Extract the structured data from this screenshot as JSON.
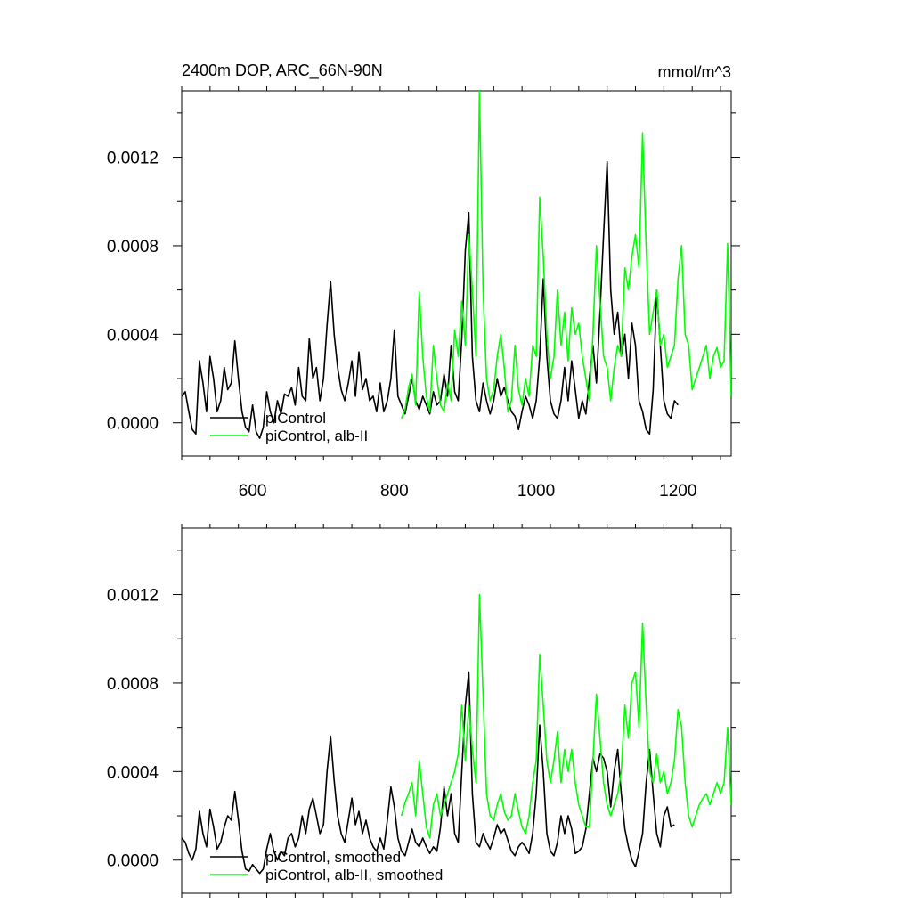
{
  "chart_data": [
    {
      "type": "line",
      "title": "2400m DOP, ARC_66N-90N",
      "units": "mmol/m^3",
      "xlim": [
        500,
        1275
      ],
      "ylim": [
        -0.00015,
        0.0015
      ],
      "xticks": [
        600,
        800,
        1000,
        1200
      ],
      "xtick_labels": [
        "600",
        "800",
        "1000",
        "1200"
      ],
      "yticks": [
        0.0,
        0.0004,
        0.0008,
        0.0012
      ],
      "ytick_labels": [
        "0.0000",
        "0.0004",
        "0.0008",
        "0.0012"
      ],
      "grid": false,
      "legend_position": "bottom-left",
      "series": [
        {
          "name": "piControl",
          "color": "#000000",
          "x": [
            500,
            505,
            510,
            515,
            520,
            525,
            530,
            535,
            540,
            545,
            550,
            555,
            560,
            565,
            570,
            575,
            580,
            585,
            590,
            595,
            600,
            605,
            610,
            615,
            620,
            625,
            630,
            635,
            640,
            645,
            650,
            655,
            660,
            665,
            670,
            675,
            680,
            685,
            690,
            695,
            700,
            705,
            710,
            715,
            720,
            725,
            730,
            735,
            740,
            745,
            750,
            755,
            760,
            765,
            770,
            775,
            780,
            785,
            790,
            795,
            800,
            805,
            810,
            815,
            820,
            825,
            830,
            835,
            840,
            845,
            850,
            855,
            860,
            865,
            870,
            875,
            880,
            885,
            890,
            895,
            900,
            905,
            910,
            915,
            920,
            925,
            930,
            935,
            940,
            945,
            950,
            955,
            960,
            965,
            970,
            975,
            980,
            985,
            990,
            995,
            1000,
            1005,
            1010,
            1015,
            1020,
            1025,
            1030,
            1035,
            1040,
            1045,
            1050,
            1055,
            1060,
            1065,
            1070,
            1075,
            1080,
            1085,
            1090,
            1095,
            1100,
            1105,
            1110,
            1115,
            1120,
            1125,
            1130,
            1135,
            1140,
            1145,
            1150,
            1155,
            1160,
            1165,
            1170,
            1175,
            1180,
            1185,
            1190,
            1195,
            1200
          ],
          "y": [
            0.00012,
            0.00014,
            5e-05,
            -3e-05,
            -5e-05,
            0.00028,
            0.00018,
            5e-05,
            0.0003,
            0.0002,
            5e-05,
            0.0001,
            0.00025,
            0.00015,
            0.00018,
            0.00037,
            0.0002,
            5e-05,
            -2e-05,
            -4e-05,
            8e-05,
            -4e-05,
            -7e-05,
            -2e-05,
            0.00014,
            5e-05,
            0.0,
            0.0001,
            4e-05,
            0.00013,
            0.00012,
            0.00016,
            8e-05,
            0.00025,
            0.00012,
            0.0001,
            0.00038,
            0.0002,
            0.00025,
            0.0001,
            0.0002,
            0.00044,
            0.00064,
            0.0004,
            0.00025,
            0.00015,
            0.0001,
            0.00018,
            0.00028,
            0.00012,
            0.00032,
            0.00015,
            0.0002,
            0.0001,
            0.00012,
            5e-05,
            0.00018,
            5e-05,
            0.0001,
            0.0002,
            0.00042,
            0.00012,
            8e-05,
            4e-05,
            0.00012,
            0.0002,
            0.0001,
            6e-05,
            0.00012,
            8e-05,
            4e-05,
            0.00014,
            8e-05,
            0.0001,
            0.00022,
            0.00012,
            0.00035,
            0.00014,
            0.0001,
            0.00038,
            0.00078,
            0.00095,
            0.0003,
            0.0001,
            5e-05,
            0.00018,
            0.0001,
            4e-05,
            0.0001,
            0.0002,
            0.00012,
            0.00016,
            0.0001,
            5e-05,
            3e-05,
            -3e-05,
            5e-05,
            0.00012,
            8e-05,
            2e-05,
            0.0001,
            0.0003,
            0.00065,
            0.0003,
            0.0001,
            4e-05,
            2e-05,
            0.0001,
            0.00025,
            0.0001,
            0.00028,
            0.00015,
            2e-05,
            0.0001,
            4e-05,
            0.0002,
            0.00035,
            0.00018,
            0.0005,
            0.00085,
            0.00118,
            0.0006,
            0.0004,
            0.0005,
            0.0003,
            0.0004,
            0.0002,
            0.00045,
            0.00035,
            0.0001,
            5e-05,
            -3e-05,
            -5e-05,
            0.00015,
            0.0006,
            0.00035,
            0.0001,
            4e-05,
            2e-05,
            0.0001,
            8e-05
          ]
        },
        {
          "name": "piControl, alb-II",
          "color": "#00ff00",
          "x": [
            810,
            815,
            820,
            825,
            830,
            835,
            840,
            845,
            850,
            855,
            860,
            865,
            870,
            875,
            880,
            885,
            890,
            895,
            900,
            905,
            910,
            915,
            920,
            925,
            930,
            935,
            940,
            945,
            950,
            955,
            960,
            965,
            970,
            975,
            980,
            985,
            990,
            995,
            1000,
            1005,
            1010,
            1015,
            1020,
            1025,
            1030,
            1035,
            1040,
            1045,
            1050,
            1055,
            1060,
            1065,
            1070,
            1075,
            1080,
            1085,
            1090,
            1095,
            1100,
            1105,
            1110,
            1115,
            1120,
            1125,
            1130,
            1135,
            1140,
            1145,
            1150,
            1155,
            1160,
            1165,
            1170,
            1175,
            1180,
            1185,
            1190,
            1195,
            1200,
            1205,
            1210,
            1215,
            1220,
            1225,
            1230,
            1235,
            1240,
            1245,
            1250,
            1255,
            1260,
            1265,
            1270,
            1275
          ],
          "y": [
            2e-05,
            6e-05,
            0.00016,
            0.00022,
            8e-05,
            0.00059,
            0.0003,
            0.00012,
            5e-05,
            0.00035,
            0.0002,
            8e-05,
            5e-05,
            0.00018,
            0.0001,
            0.00042,
            0.0003,
            0.00055,
            0.00035,
            0.00085,
            0.0006,
            0.0003,
            0.0015,
            0.0006,
            0.0002,
            0.0001,
            0.00015,
            0.0003,
            0.0004,
            0.00025,
            5e-05,
            0.0001,
            0.00035,
            0.00015,
            8e-05,
            0.0002,
            0.00012,
            0.00035,
            0.0003,
            0.00102,
            0.00075,
            0.0004,
            0.0002,
            0.0003,
            0.0006,
            0.00035,
            0.0005,
            0.00028,
            0.00052,
            0.0004,
            0.00045,
            0.0003,
            0.0002,
            0.0001,
            0.0004,
            0.0008,
            0.00055,
            0.0003,
            0.00025,
            0.0001,
            0.00025,
            0.00035,
            0.0003,
            0.0007,
            0.0006,
            0.00075,
            0.00085,
            0.0007,
            0.00131,
            0.0008,
            0.0004,
            0.0005,
            0.0006,
            0.00035,
            0.0004,
            0.00025,
            0.0003,
            0.00035,
            0.00065,
            0.0008,
            0.0004,
            0.00035,
            0.00015,
            0.0002,
            0.00025,
            0.0003,
            0.00035,
            0.0002,
            0.0003,
            0.00034,
            0.00025,
            0.00028,
            0.00081,
            0.00012
          ]
        }
      ]
    },
    {
      "type": "line",
      "xlim": [
        500,
        1275
      ],
      "ylim": [
        -0.00015,
        0.0015
      ],
      "xticks": [
        600,
        800,
        1000,
        1200
      ],
      "yticks": [
        0.0,
        0.0004,
        0.0008,
        0.0012
      ],
      "ytick_labels": [
        "0.0000",
        "0.0004",
        "0.0008",
        "0.0012"
      ],
      "grid": false,
      "legend_position": "bottom-left",
      "series": [
        {
          "name": "piControl, smoothed",
          "color": "#000000",
          "x": [
            500,
            505,
            510,
            515,
            520,
            525,
            530,
            535,
            540,
            545,
            550,
            555,
            560,
            565,
            570,
            575,
            580,
            585,
            590,
            595,
            600,
            605,
            610,
            615,
            620,
            625,
            630,
            635,
            640,
            645,
            650,
            655,
            660,
            665,
            670,
            675,
            680,
            685,
            690,
            695,
            700,
            705,
            710,
            715,
            720,
            725,
            730,
            735,
            740,
            745,
            750,
            755,
            760,
            765,
            770,
            775,
            780,
            785,
            790,
            795,
            800,
            805,
            810,
            815,
            820,
            825,
            830,
            835,
            840,
            845,
            850,
            855,
            860,
            865,
            870,
            875,
            880,
            885,
            890,
            895,
            900,
            905,
            910,
            915,
            920,
            925,
            930,
            935,
            940,
            945,
            950,
            955,
            960,
            965,
            970,
            975,
            980,
            985,
            990,
            995,
            1000,
            1005,
            1010,
            1015,
            1020,
            1025,
            1030,
            1035,
            1040,
            1045,
            1050,
            1055,
            1060,
            1065,
            1070,
            1075,
            1080,
            1085,
            1090,
            1095,
            1100,
            1105,
            1110,
            1115,
            1120,
            1125,
            1130,
            1135,
            1140,
            1145,
            1150,
            1155,
            1160,
            1165,
            1170,
            1175,
            1180,
            1185,
            1190,
            1195
          ],
          "y": [
            0.0001,
            8e-05,
            3e-05,
            0.0,
            5e-05,
            0.00022,
            0.00012,
            6e-05,
            0.00023,
            0.00015,
            5e-05,
            8e-05,
            0.00015,
            0.0002,
            0.00018,
            0.00031,
            0.00018,
            4e-05,
            -4e-05,
            -5e-05,
            -2e-05,
            -4e-05,
            -6e-05,
            -4e-05,
            5e-05,
            0.00012,
            4e-05,
            0.0,
            4e-05,
            2e-05,
            0.0001,
            0.00012,
            6e-05,
            0.0001,
            0.0002,
            0.00012,
            0.00023,
            0.00028,
            0.0002,
            0.00012,
            0.00016,
            0.0004,
            0.00056,
            0.00036,
            0.0002,
            0.00012,
            8e-05,
            0.00018,
            0.00028,
            0.00016,
            0.00022,
            0.00012,
            0.00018,
            0.0001,
            6e-05,
            4e-05,
            0.0001,
            5e-05,
            0.00018,
            0.00033,
            0.00024,
            0.0001,
            4e-05,
            2e-05,
            8e-05,
            0.00014,
            8e-05,
            6e-05,
            0.0001,
            6e-05,
            3e-05,
            6e-05,
            4e-05,
            0.00015,
            0.00033,
            0.0002,
            0.0003,
            0.00012,
            8e-05,
            0.0004,
            0.0007,
            0.00085,
            0.0003,
            8e-05,
            6e-05,
            0.00012,
            8e-05,
            5e-05,
            0.0001,
            0.00016,
            0.00012,
            0.00014,
            9e-05,
            4e-05,
            2e-05,
            6e-05,
            8e-05,
            6e-05,
            3e-05,
            0.00012,
            0.0003,
            0.00061,
            0.0004,
            0.00012,
            4e-05,
            2e-05,
            8e-05,
            0.0002,
            0.00012,
            0.0002,
            0.00014,
            3e-05,
            4e-05,
            6e-05,
            0.00014,
            0.0003,
            0.00046,
            0.0004,
            0.00048,
            0.00046,
            0.0004,
            0.00024,
            0.0004,
            0.0005,
            0.0003,
            0.00014,
            6e-05,
            0.0,
            -3e-05,
            4e-05,
            0.00012,
            0.00035,
            0.0005,
            0.0003,
            0.00012,
            6e-05,
            0.0002,
            0.00024,
            0.00015,
            0.00016
          ]
        },
        {
          "name": "piControl, alb-II, smoothed",
          "color": "#00ff00",
          "x": [
            810,
            815,
            820,
            825,
            830,
            835,
            840,
            845,
            850,
            855,
            860,
            865,
            870,
            875,
            880,
            885,
            890,
            895,
            900,
            905,
            910,
            915,
            920,
            925,
            930,
            935,
            940,
            945,
            950,
            955,
            960,
            965,
            970,
            975,
            980,
            985,
            990,
            995,
            1000,
            1005,
            1010,
            1015,
            1020,
            1025,
            1030,
            1035,
            1040,
            1045,
            1050,
            1055,
            1060,
            1065,
            1070,
            1075,
            1080,
            1085,
            1090,
            1095,
            1100,
            1105,
            1110,
            1115,
            1120,
            1125,
            1130,
            1135,
            1140,
            1145,
            1150,
            1155,
            1160,
            1165,
            1170,
            1175,
            1180,
            1185,
            1190,
            1195,
            1200,
            1205,
            1210,
            1215,
            1220,
            1225,
            1230,
            1235,
            1240,
            1245,
            1250,
            1255,
            1260,
            1265,
            1270,
            1275
          ],
          "y": [
            0.0002,
            0.00026,
            0.0003,
            0.00035,
            0.0002,
            0.00045,
            0.0003,
            0.00015,
            0.0001,
            0.00025,
            0.0003,
            0.0002,
            0.00025,
            0.0003,
            0.00035,
            0.0004,
            0.00048,
            0.0007,
            0.00045,
            0.0007,
            0.0005,
            0.00035,
            0.0012,
            0.00075,
            0.0003,
            0.0002,
            0.00018,
            0.00025,
            0.0003,
            0.00022,
            0.00018,
            0.0002,
            0.0003,
            0.00022,
            0.00015,
            0.00012,
            0.0002,
            0.00035,
            0.00045,
            0.00093,
            0.0007,
            0.00045,
            0.00035,
            0.00045,
            0.00058,
            0.00035,
            0.0005,
            0.0004,
            0.0005,
            0.00035,
            0.00025,
            0.0002,
            0.00015,
            0.00015,
            0.00045,
            0.00075,
            0.00055,
            0.00035,
            0.00025,
            0.0002,
            0.00025,
            0.0003,
            0.0004,
            0.0007,
            0.00055,
            0.0008,
            0.00085,
            0.0006,
            0.00107,
            0.0007,
            0.0004,
            0.00035,
            0.00048,
            0.00035,
            0.0004,
            0.0003,
            0.00035,
            0.00045,
            0.00068,
            0.0006,
            0.00035,
            0.0002,
            0.00015,
            0.0002,
            0.00025,
            0.00028,
            0.0003,
            0.00025,
            0.0003,
            0.00035,
            0.0003,
            0.00035,
            0.0006,
            0.00025
          ]
        }
      ]
    }
  ]
}
